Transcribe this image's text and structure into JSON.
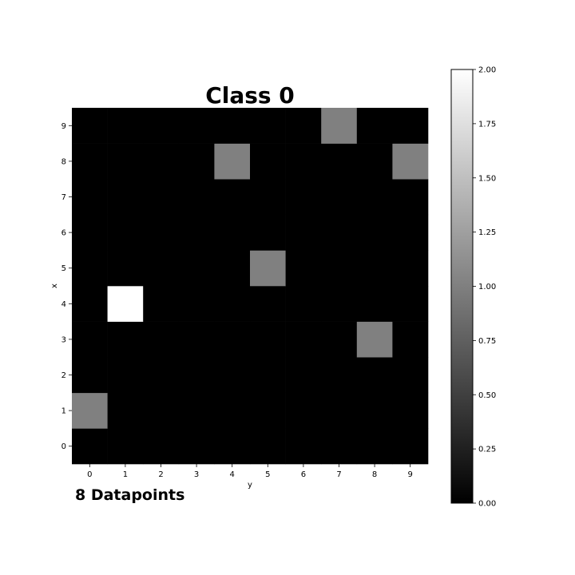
{
  "chart_data": {
    "type": "heatmap",
    "title": "Class 0",
    "xlabel": "y",
    "ylabel": "x",
    "x_ticks": [
      "0",
      "1",
      "2",
      "3",
      "4",
      "5",
      "6",
      "7",
      "8",
      "9"
    ],
    "y_ticks": [
      "0",
      "1",
      "2",
      "3",
      "4",
      "5",
      "6",
      "7",
      "8",
      "9"
    ],
    "grid_size": 10,
    "nonzero_cells": [
      {
        "y": 7,
        "x": 9,
        "value": 1
      },
      {
        "y": 4,
        "x": 8,
        "value": 1
      },
      {
        "y": 9,
        "x": 8,
        "value": 1
      },
      {
        "y": 5,
        "x": 5,
        "value": 1
      },
      {
        "y": 1,
        "x": 4,
        "value": 2
      },
      {
        "y": 8,
        "x": 3,
        "value": 1
      },
      {
        "y": 0,
        "x": 1,
        "value": 1
      }
    ],
    "default_value": 0,
    "colormap": "gray",
    "vmin": 0,
    "vmax": 2,
    "colorbar_ticks": [
      "0.00",
      "0.25",
      "0.50",
      "0.75",
      "1.00",
      "1.25",
      "1.50",
      "1.75",
      "2.00"
    ],
    "annotation": "8 Datapoints",
    "grid": false
  }
}
